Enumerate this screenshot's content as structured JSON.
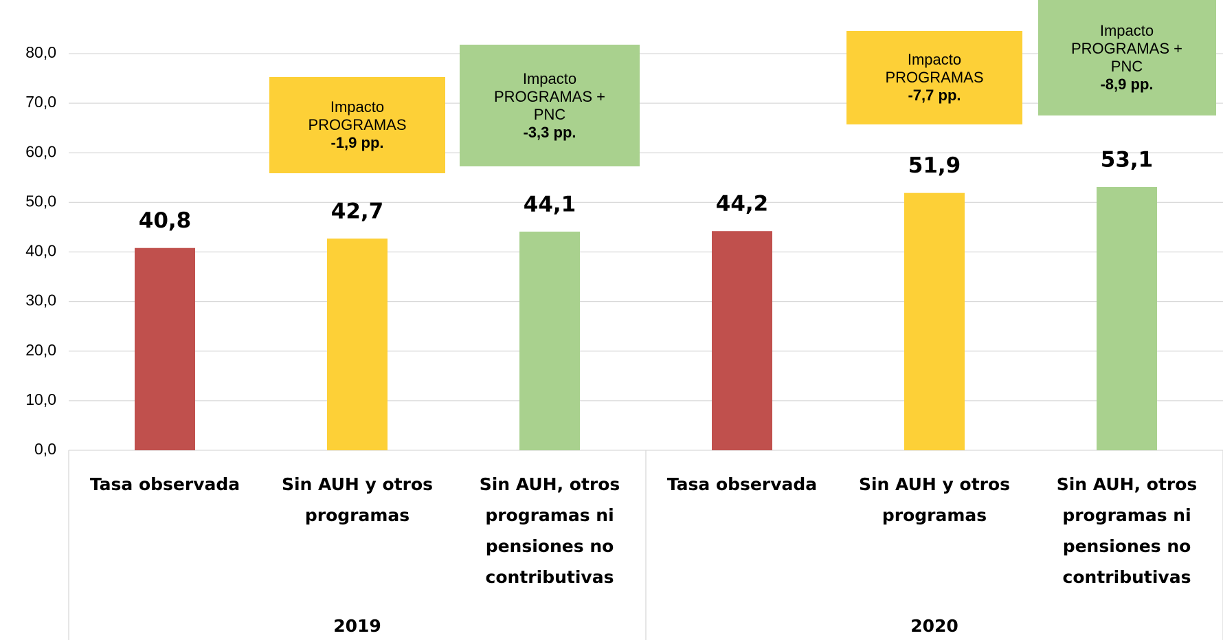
{
  "chart_data": {
    "type": "bar",
    "categories": [
      "Tasa observada",
      "Sin AUH y otros programas",
      "Sin AUH, otros programas ni pensiones no contributivas",
      "Tasa observada",
      "Sin AUH y otros programas",
      "Sin AUH, otros programas ni pensiones no contributivas"
    ],
    "groups": [
      "2019",
      "2020"
    ],
    "values": [
      40.8,
      42.7,
      44.1,
      44.2,
      51.9,
      53.1
    ],
    "value_labels": [
      "40,8",
      "42,7",
      "44,1",
      "44,2",
      "51,9",
      "53,1"
    ],
    "colors": [
      "#c0504d",
      "#fdd037",
      "#a9d18e",
      "#c0504d",
      "#fdd037",
      "#a9d18e"
    ],
    "ylim": [
      0,
      80
    ],
    "yticks": [
      {
        "value": 0,
        "label": "0,0"
      },
      {
        "value": 10,
        "label": "10,0"
      },
      {
        "value": 20,
        "label": "20,0"
      },
      {
        "value": 30,
        "label": "30,0"
      },
      {
        "value": 40,
        "label": "40,0"
      },
      {
        "value": 50,
        "label": "50,0"
      },
      {
        "value": 60,
        "label": "60,0"
      },
      {
        "value": 70,
        "label": "70,0"
      },
      {
        "value": 80,
        "label": "80,0"
      }
    ],
    "grid": true,
    "annotations": [
      {
        "lines": [
          "Impacto",
          "PROGRAMAS"
        ],
        "impact": "-1,9 pp.",
        "color": "#fdd037"
      },
      {
        "lines": [
          "Impacto",
          "PROGRAMAS +",
          "PNC"
        ],
        "impact": "-3,3 pp.",
        "color": "#a9d18e"
      },
      {
        "lines": [
          "Impacto",
          "PROGRAMAS"
        ],
        "impact": "-7,7 pp.",
        "color": "#fdd037"
      },
      {
        "lines": [
          "Impacto",
          "PROGRAMAS +",
          "PNC"
        ],
        "impact": "-8,9 pp.",
        "color": "#a9d18e"
      }
    ]
  }
}
